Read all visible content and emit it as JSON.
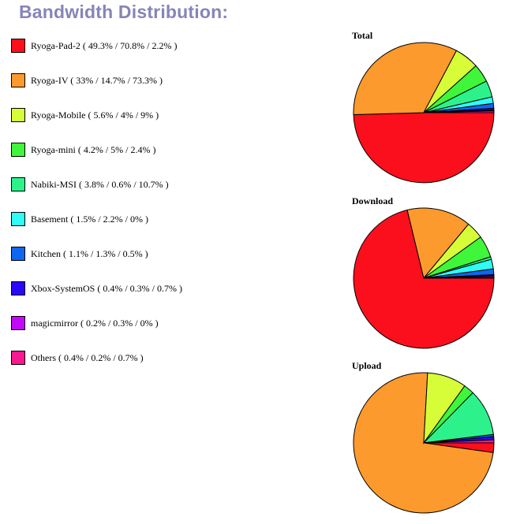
{
  "page": {
    "title": "Bandwidth Distribution:"
  },
  "legend": [
    {
      "label": "Ryoga-Pad-2 ( 49.3% / 70.8% / 2.2% )",
      "color": "#fc0f1c"
    },
    {
      "label": "Ryoga-IV ( 33% / 14.7% / 73.3% )",
      "color": "#fd9a2e"
    },
    {
      "label": "Ryoga-Mobile ( 5.6% / 4% / 9% )",
      "color": "#d6fd38"
    },
    {
      "label": "Ryoga-mini ( 4.2% / 5% / 2.4% )",
      "color": "#40f63a"
    },
    {
      "label": "Nabiki-MSI ( 3.8% / 0.6% / 10.7% )",
      "color": "#2df28b"
    },
    {
      "label": "Basement ( 1.5% / 2.2% / 0% )",
      "color": "#2ffcf4"
    },
    {
      "label": "Kitchen ( 1.1% / 1.3% / 0.5% )",
      "color": "#0f66f0"
    },
    {
      "label": "Xbox-SystemOS ( 0.4% / 0.3% / 0.7% )",
      "color": "#2a09f6"
    },
    {
      "label": "magicmirror ( 0.2% / 0.3% / 0% )",
      "color": "#c20af9"
    },
    {
      "label": "Others ( 0.4% / 0.2% / 0.7% )",
      "color": "#fc1890"
    }
  ],
  "chart_data": [
    {
      "type": "pie",
      "title": "Total",
      "labels": [
        "Ryoga-Pad-2",
        "Ryoga-IV",
        "Ryoga-Mobile",
        "Ryoga-mini",
        "Nabiki-MSI",
        "Basement",
        "Kitchen",
        "Xbox-SystemOS",
        "magicmirror",
        "Others"
      ],
      "values": [
        49.3,
        33,
        5.6,
        4.2,
        3.8,
        1.5,
        1.1,
        0.4,
        0.2,
        0.4
      ]
    },
    {
      "type": "pie",
      "title": "Download",
      "labels": [
        "Ryoga-Pad-2",
        "Ryoga-IV",
        "Ryoga-Mobile",
        "Ryoga-mini",
        "Nabiki-MSI",
        "Basement",
        "Kitchen",
        "Xbox-SystemOS",
        "magicmirror",
        "Others"
      ],
      "values": [
        70.8,
        14.7,
        4,
        5,
        0.6,
        2.2,
        1.3,
        0.3,
        0.3,
        0.2
      ]
    },
    {
      "type": "pie",
      "title": "Upload",
      "labels": [
        "Ryoga-Pad-2",
        "Ryoga-IV",
        "Ryoga-Mobile",
        "Ryoga-mini",
        "Nabiki-MSI",
        "Basement",
        "Kitchen",
        "Xbox-SystemOS",
        "magicmirror",
        "Others"
      ],
      "values": [
        2.2,
        73.3,
        9,
        2.4,
        10.7,
        0,
        0.5,
        0.7,
        0,
        0.7
      ]
    }
  ]
}
